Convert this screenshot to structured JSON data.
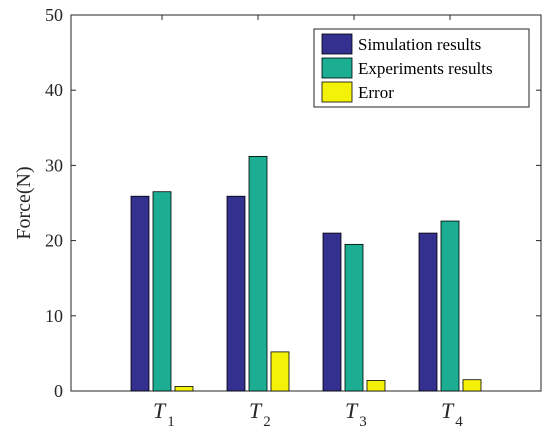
{
  "chart_data": {
    "type": "bar",
    "categories": [
      {
        "main": "T",
        "sub": "1"
      },
      {
        "main": "T",
        "sub": "2"
      },
      {
        "main": "T",
        "sub": "3"
      },
      {
        "main": "T",
        "sub": "4"
      }
    ],
    "series": [
      {
        "name": "Simulation results",
        "color": "#33308f",
        "values": [
          25.9,
          25.9,
          21.0,
          21.0
        ]
      },
      {
        "name": "Experiments results",
        "color": "#1bae92",
        "values": [
          26.5,
          31.2,
          19.5,
          22.6
        ]
      },
      {
        "name": "Error",
        "color": "#f5f20a",
        "values": [
          0.6,
          5.2,
          1.4,
          1.5
        ]
      }
    ],
    "title": "",
    "xlabel": "",
    "ylabel": "Force(N)",
    "ylim": [
      0,
      50
    ],
    "yticks": [
      "0",
      "10",
      "20",
      "30",
      "40",
      "50"
    ],
    "grid": false,
    "legend_position": "top-right"
  }
}
